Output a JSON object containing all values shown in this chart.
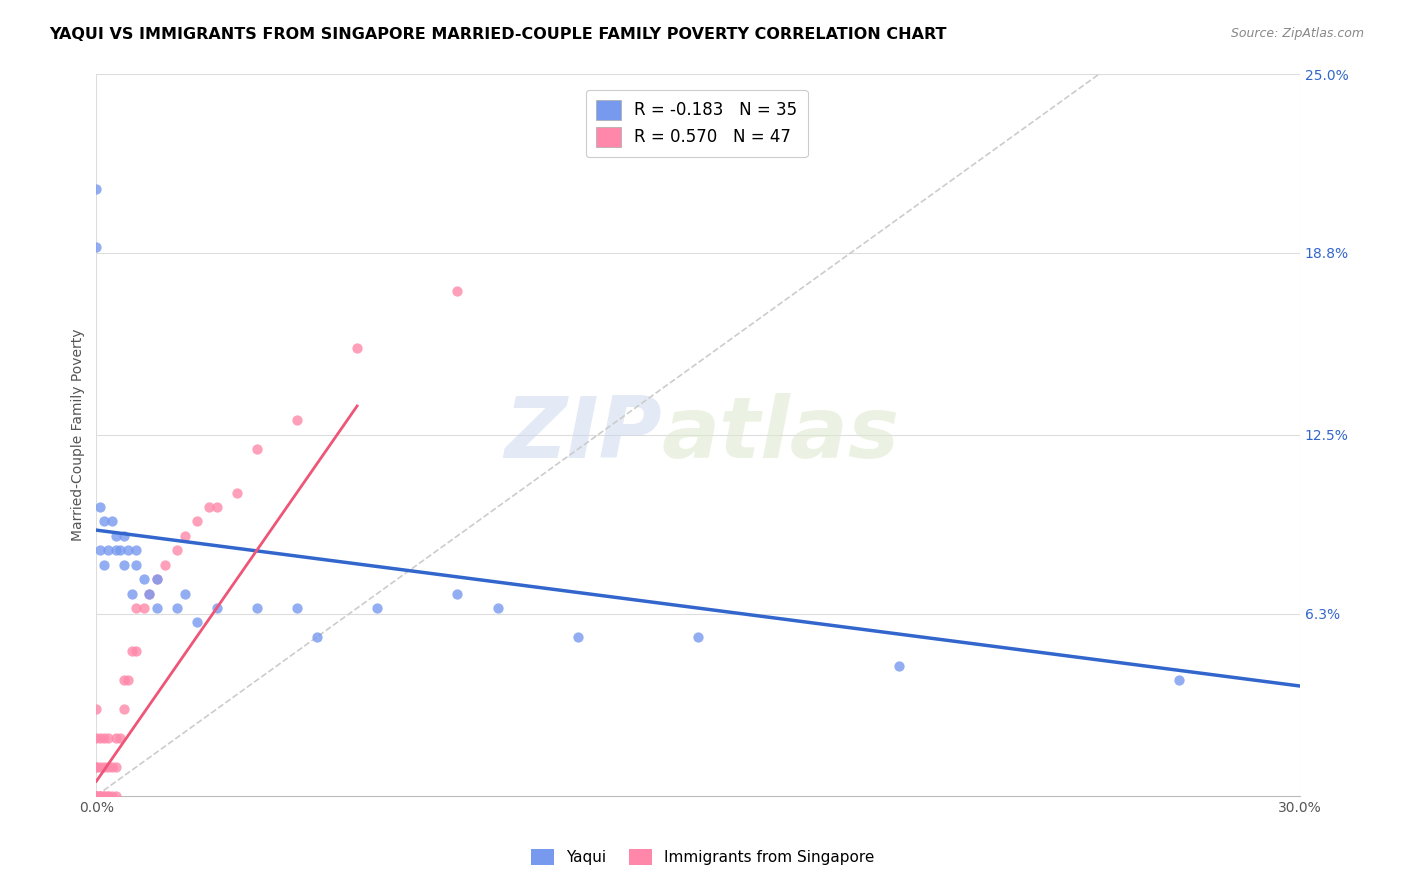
{
  "title": "YAQUI VS IMMIGRANTS FROM SINGAPORE MARRIED-COUPLE FAMILY POVERTY CORRELATION CHART",
  "source_text": "Source: ZipAtlas.com",
  "ylabel": "Married-Couple Family Poverty",
  "xlim": [
    0.0,
    0.3
  ],
  "ylim": [
    0.0,
    0.25
  ],
  "xtick_labels": [
    "0.0%",
    "30.0%"
  ],
  "xtick_vals": [
    0.0,
    0.3
  ],
  "ytick_labels_right": [
    "25.0%",
    "18.8%",
    "12.5%",
    "6.3%"
  ],
  "ytick_vals_right": [
    0.25,
    0.188,
    0.125,
    0.063
  ],
  "watermark_zip": "ZIP",
  "watermark_atlas": "atlas",
  "bottom_legend": [
    "Yaqui",
    "Immigrants from Singapore"
  ],
  "yaqui_color": "#7799ee",
  "singapore_color": "#ff88aa",
  "yaqui_line_color": "#3366cc",
  "singapore_line_color": "#ee5577",
  "diag_color": "#cccccc",
  "grid_color": "#dddddd",
  "yaqui_scatter_x": [
    0.0,
    0.0,
    0.001,
    0.001,
    0.002,
    0.002,
    0.003,
    0.004,
    0.005,
    0.005,
    0.006,
    0.007,
    0.007,
    0.008,
    0.009,
    0.01,
    0.01,
    0.012,
    0.013,
    0.015,
    0.015,
    0.02,
    0.022,
    0.025,
    0.03,
    0.04,
    0.05,
    0.055,
    0.07,
    0.09,
    0.1,
    0.12,
    0.15,
    0.2,
    0.27
  ],
  "yaqui_scatter_y": [
    0.19,
    0.21,
    0.1,
    0.085,
    0.095,
    0.08,
    0.085,
    0.095,
    0.085,
    0.09,
    0.085,
    0.08,
    0.09,
    0.085,
    0.07,
    0.08,
    0.085,
    0.075,
    0.07,
    0.075,
    0.065,
    0.065,
    0.07,
    0.06,
    0.065,
    0.065,
    0.065,
    0.055,
    0.065,
    0.07,
    0.065,
    0.055,
    0.055,
    0.045,
    0.04
  ],
  "singapore_scatter_x": [
    0.0,
    0.0,
    0.0,
    0.0,
    0.0,
    0.0,
    0.0,
    0.0,
    0.001,
    0.001,
    0.001,
    0.001,
    0.001,
    0.002,
    0.002,
    0.002,
    0.002,
    0.003,
    0.003,
    0.003,
    0.003,
    0.004,
    0.004,
    0.005,
    0.005,
    0.005,
    0.006,
    0.007,
    0.007,
    0.008,
    0.009,
    0.01,
    0.01,
    0.012,
    0.013,
    0.015,
    0.017,
    0.02,
    0.022,
    0.025,
    0.028,
    0.03,
    0.035,
    0.04,
    0.05,
    0.065,
    0.09
  ],
  "singapore_scatter_y": [
    0.0,
    0.0,
    0.0,
    0.0,
    0.01,
    0.01,
    0.02,
    0.03,
    0.0,
    0.0,
    0.0,
    0.01,
    0.02,
    0.0,
    0.0,
    0.01,
    0.02,
    0.0,
    0.0,
    0.01,
    0.02,
    0.0,
    0.01,
    0.0,
    0.01,
    0.02,
    0.02,
    0.03,
    0.04,
    0.04,
    0.05,
    0.05,
    0.065,
    0.065,
    0.07,
    0.075,
    0.08,
    0.085,
    0.09,
    0.095,
    0.1,
    0.1,
    0.105,
    0.12,
    0.13,
    0.155,
    0.175
  ],
  "yaqui_line_x": [
    0.0,
    0.3
  ],
  "yaqui_line_y": [
    0.092,
    0.038
  ],
  "singapore_line_x": [
    0.0,
    0.065
  ],
  "singapore_line_y": [
    0.005,
    0.135
  ],
  "diag_line_x": [
    0.0,
    0.25
  ],
  "diag_line_y": [
    0.0,
    0.25
  ]
}
